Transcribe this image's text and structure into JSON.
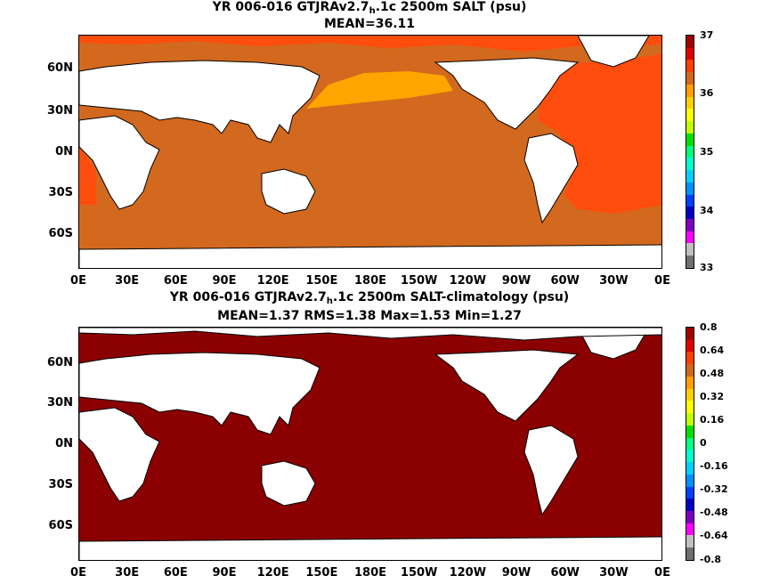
{
  "top": {
    "title_pre": "YR 006-016 GTJRAv2.7",
    "title_sub": "h",
    "title_post": ".1c 2500m SALT (psu)",
    "subtitle": "MEAN=36.11",
    "colorbar_labels": [
      "37",
      "36",
      "35",
      "34",
      "33"
    ],
    "colors": {
      "atlantic": "#ff4d0d",
      "pacific": "#d2691e",
      "north_pacific": "#ffa500",
      "land": "#ffffff"
    }
  },
  "bottom": {
    "title_pre": "YR 006-016 GTJRAv2.7",
    "title_sub": "h",
    "title_post": ".1c 2500m SALT-climatology (psu)",
    "subtitle": "MEAN=1.37   RMS=1.38   Max=1.53   Min=1.27",
    "colorbar_labels": [
      "0.8",
      "0.64",
      "0.48",
      "0.32",
      "0.16",
      "0",
      "-0.16",
      "-0.32",
      "-0.48",
      "-0.64",
      "-0.8"
    ],
    "colors": {
      "ocean": "#8b0000",
      "land": "#ffffff"
    }
  },
  "axes": {
    "y_labels": [
      "60N",
      "30N",
      "0N",
      "30S",
      "60S"
    ],
    "x_labels": [
      "0E",
      "30E",
      "60E",
      "90E",
      "120E",
      "150E",
      "180E",
      "150W",
      "120W",
      "90W",
      "60W",
      "30W",
      "0E"
    ]
  },
  "colorbar_colors": [
    "#a00000",
    "#e00000",
    "#ff4000",
    "#d2691e",
    "#ffa000",
    "#ffd000",
    "#ffff00",
    "#c0ff00",
    "#00e000",
    "#00ff80",
    "#00ffd0",
    "#00d0ff",
    "#0090ff",
    "#0040ff",
    "#0000c0",
    "#8000c0",
    "#ff00ff",
    "#c0c0c0",
    "#707070"
  ]
}
